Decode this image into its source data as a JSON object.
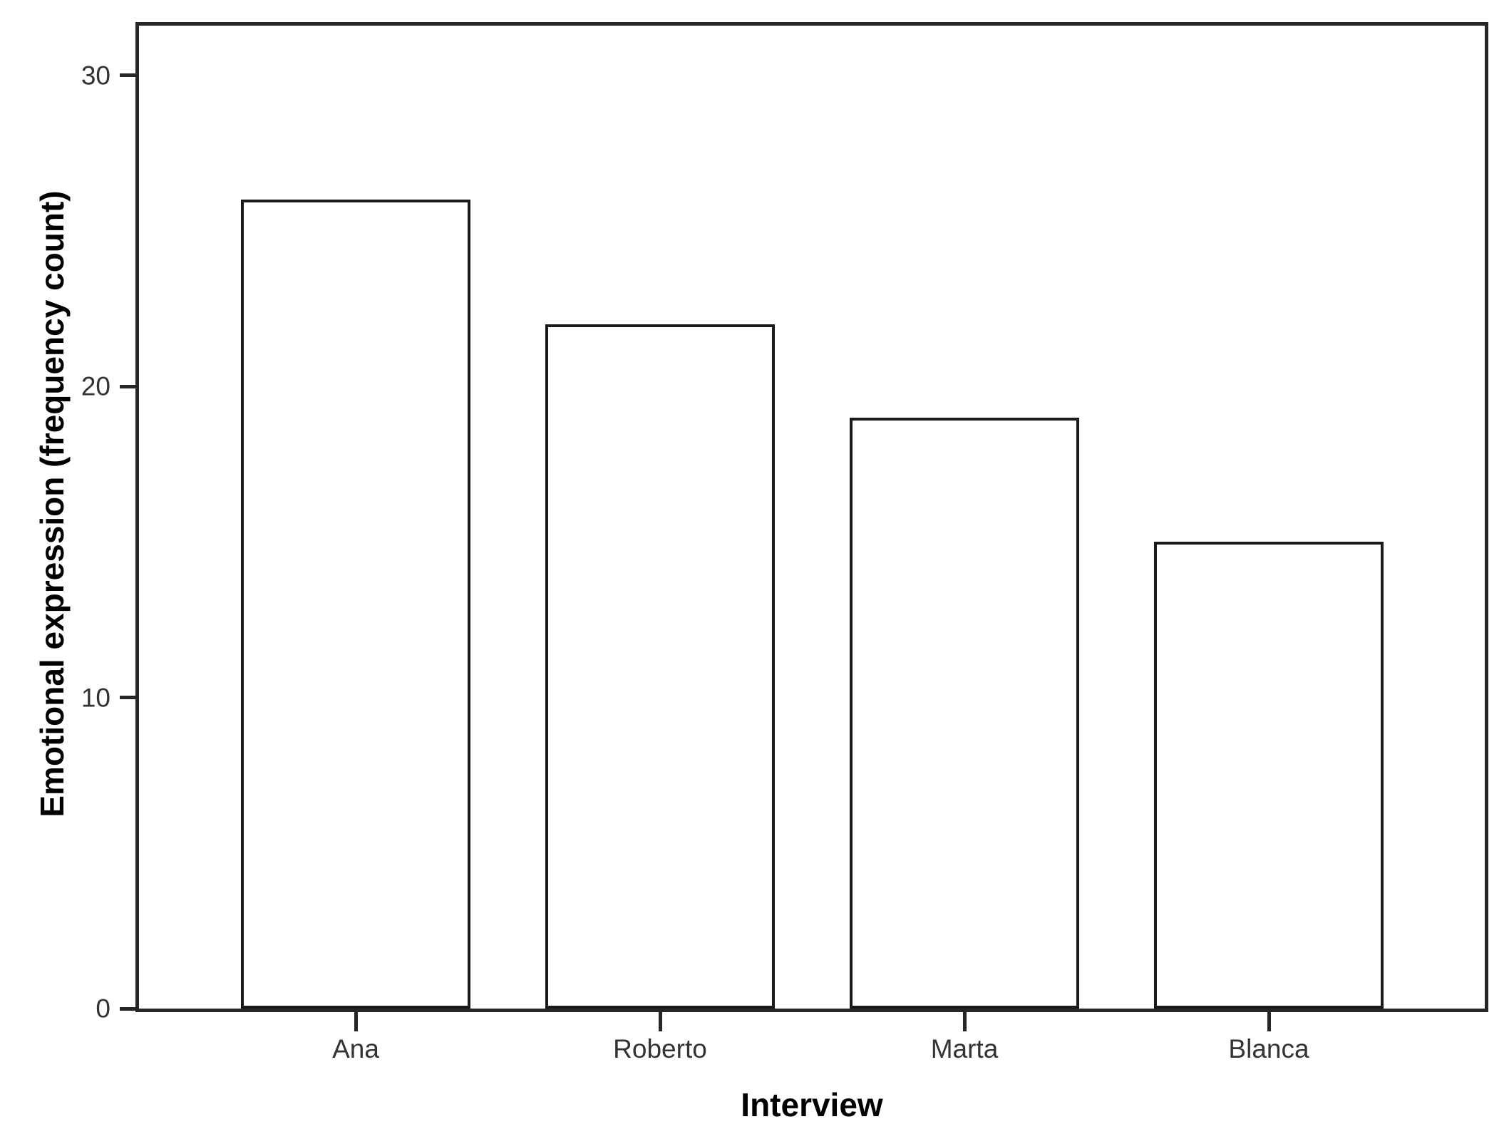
{
  "figure": {
    "background": "#ffffff"
  },
  "chart_data": {
    "type": "bar",
    "title": "",
    "categories": [
      "Ana",
      "Roberto",
      "Marta",
      "Blanca"
    ],
    "values": [
      26,
      22,
      19,
      15
    ],
    "xlabel": "Interview",
    "ylabel": "Emotional expression (frequency count)",
    "ylim": [
      0,
      31.6
    ],
    "yticks": [
      0,
      10,
      20,
      30
    ],
    "grid": false,
    "legend": "none",
    "bar_fill": "#ffffff",
    "bar_border_color": "#1a1a1a",
    "axis_frame_color": "#262626",
    "tick_label_color": "#333333",
    "axis_title_color": "#000000"
  }
}
